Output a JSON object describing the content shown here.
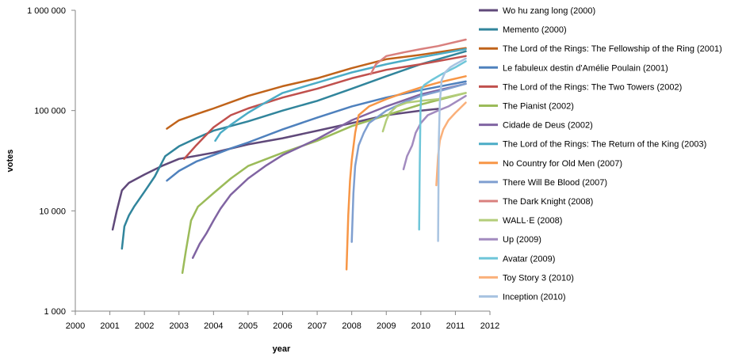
{
  "chart_data": {
    "type": "line",
    "xlabel": "year",
    "ylabel": "votes",
    "y_scale": "log",
    "ylim": [
      1000,
      1000000
    ],
    "xlim": [
      2000,
      2012
    ],
    "x_ticks": [
      "2000",
      "2001",
      "2002",
      "2003",
      "2004",
      "2005",
      "2006",
      "2007",
      "2008",
      "2009",
      "2010",
      "2011",
      "2012"
    ],
    "y_ticks": [
      "1 000",
      "10 000",
      "100 000",
      "1 000 000"
    ],
    "legend_position": "right",
    "grid": false,
    "series": [
      {
        "name": "Wo hu zang long (2000)",
        "color": "#60497a",
        "x": [
          2001.08,
          2001.2,
          2001.35,
          2001.55,
          2002.0,
          2002.5,
          2003.0,
          2004.0,
          2005.0,
          2006.0,
          2007.0,
          2008.0,
          2009.0,
          2010.0,
          2010.5
        ],
        "y": [
          6500,
          10000,
          16000,
          19000,
          23000,
          28000,
          33000,
          38000,
          46000,
          53000,
          63000,
          75000,
          90000,
          100000,
          104000
        ]
      },
      {
        "name": "Memento (2000)",
        "color": "#31859c",
        "x": [
          2001.35,
          2001.42,
          2001.55,
          2001.7,
          2002.0,
          2002.3,
          2002.6,
          2003.0,
          2003.5,
          2004.0,
          2005.0,
          2006.0,
          2007.0,
          2008.0,
          2009.0,
          2010.0,
          2011.3
        ],
        "y": [
          4200,
          7000,
          9000,
          11000,
          15500,
          22000,
          35000,
          44000,
          53000,
          63000,
          78000,
          100000,
          125000,
          165000,
          220000,
          290000,
          390000
        ]
      },
      {
        "name": "The Lord of the Rings: The Fellowship of the Ring (2001)",
        "color": "#c0631a",
        "x": [
          2002.65,
          2003.0,
          2003.5,
          2004.0,
          2005.0,
          2006.0,
          2007.0,
          2008.0,
          2009.0,
          2010.0,
          2011.3
        ],
        "y": [
          66000,
          80000,
          92000,
          105000,
          140000,
          175000,
          210000,
          265000,
          325000,
          360000,
          420000
        ]
      },
      {
        "name": "Le fabuleux destin d'Amélie Poulain (2001)",
        "color": "#4f81bd",
        "x": [
          2002.65,
          2003.0,
          2003.5,
          2004.0,
          2004.5,
          2005.0,
          2006.0,
          2007.0,
          2008.0,
          2009.0,
          2010.0,
          2011.3
        ],
        "y": [
          20000,
          25000,
          31000,
          36000,
          42000,
          48000,
          65000,
          85000,
          110000,
          135000,
          160000,
          195000
        ]
      },
      {
        "name": "The Lord of the Rings: The Two Towers (2002)",
        "color": "#c0504d",
        "x": [
          2003.15,
          2003.5,
          2004.0,
          2004.5,
          2005.0,
          2006.0,
          2007.0,
          2008.0,
          2009.0,
          2010.0,
          2011.3
        ],
        "y": [
          33000,
          45000,
          68000,
          90000,
          105000,
          135000,
          165000,
          210000,
          255000,
          290000,
          350000
        ]
      },
      {
        "name": "The Pianist (2002)",
        "color": "#9bbb59",
        "x": [
          2003.1,
          2003.2,
          2003.35,
          2003.55,
          2004.0,
          2004.5,
          2005.0,
          2006.0,
          2007.0,
          2008.0,
          2009.0,
          2010.0,
          2011.3
        ],
        "y": [
          2400,
          4000,
          8000,
          11000,
          15000,
          21000,
          28000,
          38000,
          50000,
          70000,
          90000,
          115000,
          150000
        ]
      },
      {
        "name": "Cidade de Deus (2002)",
        "color": "#8064a2",
        "x": [
          2003.4,
          2003.6,
          2003.8,
          2004.0,
          2004.2,
          2004.5,
          2005.0,
          2005.5,
          2006.0,
          2007.0,
          2008.0,
          2009.0,
          2010.0,
          2011.3
        ],
        "y": [
          3400,
          4700,
          6000,
          8000,
          10500,
          14500,
          21000,
          28000,
          36000,
          52000,
          80000,
          110000,
          145000,
          185000
        ]
      },
      {
        "name": "The Lord of the Rings: The Return of the King (2003)",
        "color": "#4bacc6",
        "x": [
          2004.05,
          2004.2,
          2004.5,
          2005.0,
          2005.5,
          2006.0,
          2007.0,
          2008.0,
          2009.0,
          2010.0,
          2011.3
        ],
        "y": [
          50000,
          60000,
          72000,
          95000,
          120000,
          150000,
          190000,
          240000,
          290000,
          340000,
          410000
        ]
      },
      {
        "name": "No Country for Old Men (2007)",
        "color": "#f79646",
        "x": [
          2007.85,
          2007.9,
          2007.95,
          2008.0,
          2008.1,
          2008.2,
          2008.5,
          2009.0,
          2009.5,
          2010.0,
          2010.5,
          2011.3
        ],
        "y": [
          2600,
          9000,
          20000,
          32000,
          60000,
          90000,
          110000,
          130000,
          150000,
          170000,
          190000,
          220000
        ]
      },
      {
        "name": "There Will Be Blood (2007)",
        "color": "#7f9fd0",
        "x": [
          2008.0,
          2008.05,
          2008.1,
          2008.2,
          2008.35,
          2008.5,
          2009.0,
          2009.5,
          2010.0,
          2010.5,
          2011.3
        ],
        "y": [
          4900,
          15000,
          28000,
          45000,
          60000,
          75000,
          100000,
          120000,
          140000,
          155000,
          185000
        ]
      },
      {
        "name": "The Dark Knight (2008)",
        "color": "#d9807e",
        "x": [
          2008.55,
          2008.7,
          2009.0,
          2009.5,
          2010.0,
          2010.5,
          2011.3
        ],
        "y": [
          230000,
          290000,
          350000,
          380000,
          410000,
          440000,
          510000
        ]
      },
      {
        "name": "WALL·E (2008)",
        "color": "#b3cd7a",
        "x": [
          2008.9,
          2009.0,
          2009.1,
          2009.3,
          2009.6,
          2010.0,
          2010.5,
          2011.3
        ],
        "y": [
          62000,
          80000,
          95000,
          110000,
          120000,
          125000,
          130000,
          150000
        ]
      },
      {
        "name": "Up (2009)",
        "color": "#a28bbf",
        "x": [
          2009.5,
          2009.6,
          2009.75,
          2009.85,
          2010.0,
          2010.2,
          2010.5,
          2010.8,
          2011.3
        ],
        "y": [
          26000,
          35000,
          45000,
          60000,
          75000,
          90000,
          100000,
          110000,
          140000
        ]
      },
      {
        "name": "Avatar (2009)",
        "color": "#6fc6d9",
        "x": [
          2009.95,
          2009.97,
          2009.99,
          2010.02,
          2010.1,
          2010.3,
          2010.6,
          2011.0,
          2011.3
        ],
        "y": [
          6500,
          30000,
          100000,
          165000,
          180000,
          200000,
          230000,
          270000,
          310000
        ]
      },
      {
        "name": "Toy Story 3 (2010)",
        "color": "#fab07a",
        "x": [
          2010.45,
          2010.5,
          2010.55,
          2010.65,
          2010.8,
          2011.0,
          2011.3
        ],
        "y": [
          18000,
          35000,
          50000,
          65000,
          80000,
          95000,
          120000
        ]
      },
      {
        "name": "Inception (2010)",
        "color": "#a9c4e1",
        "x": [
          2010.5,
          2010.52,
          2010.55,
          2010.6,
          2010.7,
          2010.85,
          2011.0,
          2011.3
        ],
        "y": [
          5000,
          50000,
          120000,
          200000,
          240000,
          270000,
          290000,
          330000
        ]
      }
    ]
  }
}
